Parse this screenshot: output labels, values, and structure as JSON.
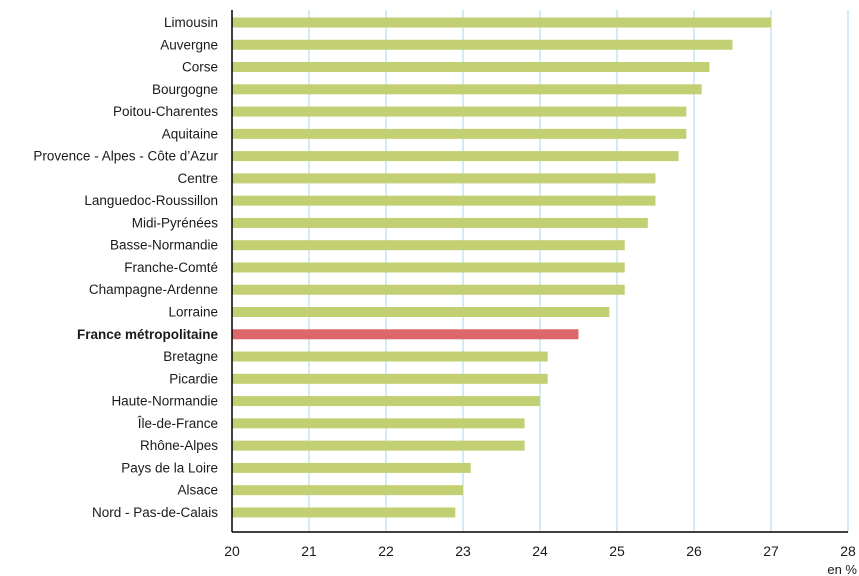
{
  "chart_data": {
    "type": "bar",
    "orientation": "horizontal",
    "categories": [
      "Limousin",
      "Auvergne",
      "Corse",
      "Bourgogne",
      "Poitou-Charentes",
      "Aquitaine",
      "Provence - Alpes - Côte d’Azur",
      "Centre",
      "Languedoc-Roussillon",
      "Midi-Pyrénées",
      "Basse-Normandie",
      "Franche-Comté",
      "Champagne-Ardenne",
      "Lorraine",
      "France métropolitaine",
      "Bretagne",
      "Picardie",
      "Haute-Normandie",
      "Île-de-France",
      "Rhône-Alpes",
      "Pays de la Loire",
      "Alsace",
      "Nord - Pas-de-Calais"
    ],
    "values": [
      27.0,
      26.5,
      26.2,
      26.1,
      25.9,
      25.9,
      25.8,
      25.5,
      25.5,
      25.4,
      25.1,
      25.1,
      25.1,
      24.9,
      24.5,
      24.1,
      24.1,
      24.0,
      23.8,
      23.8,
      23.1,
      23.0,
      22.9
    ],
    "highlight": "France métropolitaine",
    "xlim": [
      20,
      28
    ],
    "xticks": [
      "20",
      "21",
      "22",
      "23",
      "24",
      "25",
      "26",
      "27",
      "28"
    ],
    "xunit": "en %",
    "grid": true,
    "colors": {
      "bar": "#c2cf72",
      "highlight": "#dd676b",
      "grid": "#a9d6e8",
      "axis": "#000000"
    }
  }
}
